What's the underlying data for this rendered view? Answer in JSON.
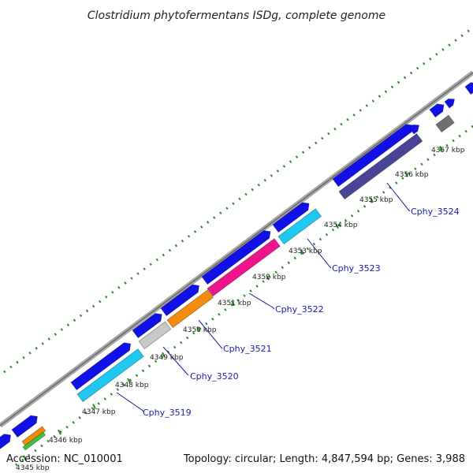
{
  "title": "Clostridium phytofermentans ISDg, complete genome",
  "footer": {
    "accession": "Accession: NC_010001",
    "topology": "Topology: circular; Length: 4,847,594 bp; Genes: 3,988"
  },
  "kbp_labels": [
    "4345 kbp",
    "4346 kbp",
    "4347 kbp",
    "4348 kbp",
    "4349 kbp",
    "4350 kbp",
    "4351 kbp",
    "4352 kbp",
    "4353 kbp",
    "4354 kbp",
    "4355 kbp",
    "4356 kbp",
    "4357 kbp"
  ],
  "gene_labels": [
    "Cphy_3519",
    "Cphy_3520",
    "Cphy_3521",
    "Cphy_3522",
    "Cphy_3523",
    "Cphy_3524"
  ],
  "colors": {
    "backbone": "#8c8c8c",
    "cds": "#1010e8",
    "light_blue": "#1ec8f0",
    "orange": "#f28c0a",
    "green": "#3cc43c",
    "gray": "#c8c8c8",
    "magenta": "#f0148c",
    "purple": "#4a4496",
    "dark_gray": "#707070",
    "dots": "#2a8a2a"
  }
}
